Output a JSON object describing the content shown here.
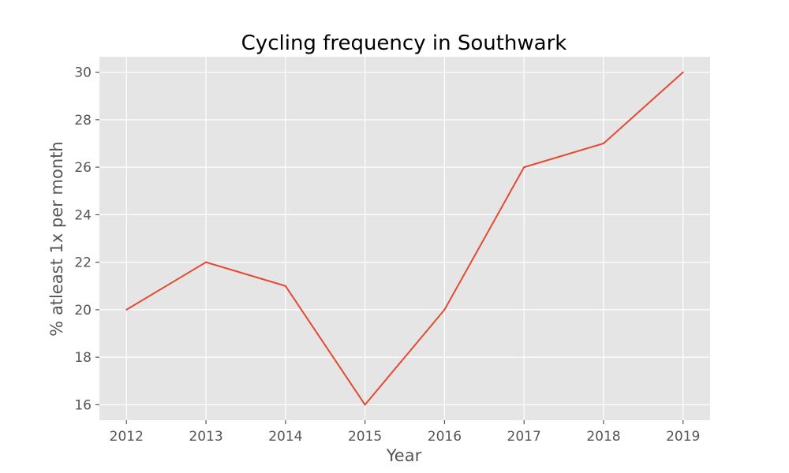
{
  "chart_data": {
    "type": "line",
    "title": "Cycling frequency in Southwark",
    "xlabel": "Year",
    "ylabel": "% atleast 1x per month",
    "x": [
      2012,
      2013,
      2014,
      2015,
      2016,
      2017,
      2018,
      2019
    ],
    "series": [
      {
        "values": [
          20,
          22,
          21,
          16,
          20,
          26,
          27,
          30
        ],
        "color": "#E24A33"
      }
    ],
    "xlim": [
      2011.66,
      2019.34
    ],
    "ylim": [
      15.35,
      30.65
    ],
    "xticks": [
      "2012",
      "2013",
      "2014",
      "2015",
      "2016",
      "2017",
      "2018",
      "2019"
    ],
    "yticks": [
      "16",
      "18",
      "20",
      "22",
      "24",
      "26",
      "28",
      "30"
    ],
    "grid": true,
    "background_color": "#E5E5E5",
    "grid_color": "#FFFFFF"
  }
}
